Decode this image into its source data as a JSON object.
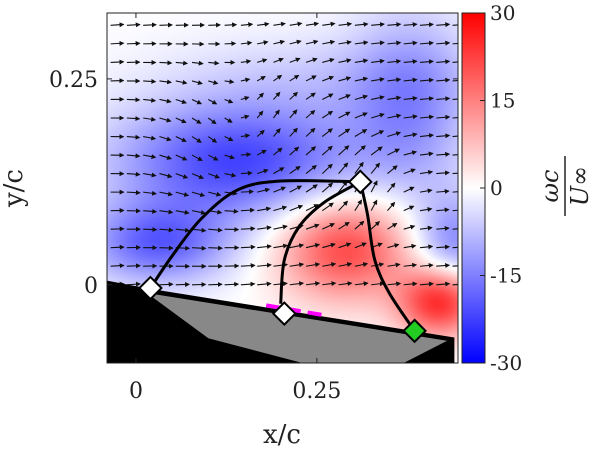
{
  "chart_data": {
    "type": "heatmap",
    "title": "",
    "xlabel": "x/c",
    "ylabel": "y/c",
    "xlim": [
      -0.04,
      0.445
    ],
    "ylim": [
      -0.095,
      0.33
    ],
    "xticks": [
      0,
      0.25
    ],
    "xtick_labels": [
      "0",
      "0.25"
    ],
    "yticks": [
      0,
      0.25
    ],
    "ytick_labels": [
      "0",
      "0.25"
    ],
    "colorbar": {
      "label_numerator": "ωc",
      "label_denominator": "U∞",
      "range": [
        -30,
        30
      ],
      "ticks": [
        30,
        15,
        0,
        -15,
        -30
      ],
      "tick_labels": [
        "30",
        "15",
        "0",
        "-15",
        "-30"
      ],
      "colormap": [
        "#0000ff",
        "#ffffff",
        "#ff0000"
      ]
    },
    "vorticity_regions": [
      {
        "name": "leading-edge vortex",
        "x": 0.14,
        "y": 0.15,
        "sx": 0.12,
        "sy": 0.05,
        "value": -22
      },
      {
        "name": "leading-edge shear layer",
        "x": 0.03,
        "y": 0.05,
        "sx": 0.07,
        "sy": 0.035,
        "value": -18
      },
      {
        "name": "upper wake",
        "x": 0.38,
        "y": 0.22,
        "sx": 0.06,
        "sy": 0.08,
        "value": -12
      },
      {
        "name": "right wake",
        "x": 0.44,
        "y": 0.05,
        "sx": 0.04,
        "sy": 0.04,
        "value": -14
      },
      {
        "name": "upper sheet",
        "x": 0.25,
        "y": 0.25,
        "sx": 0.15,
        "sy": 0.04,
        "value": -5
      },
      {
        "name": "trailing counter-rotating region",
        "x": 0.29,
        "y": 0.045,
        "sx": 0.065,
        "sy": 0.045,
        "value": 22
      },
      {
        "name": "trailing-edge region",
        "x": 0.42,
        "y": -0.02,
        "sx": 0.04,
        "sy": 0.03,
        "value": 26
      }
    ],
    "vector_grid": {
      "x_spacing": 0.0225,
      "y_spacing": 0.0225,
      "x_range": [
        -0.035,
        0.44
      ],
      "y_range": [
        0.0,
        0.32
      ]
    },
    "body": {
      "shape": [
        [
          -0.04,
          0.005
        ],
        [
          0.02,
          -0.005
        ],
        [
          0.44,
          -0.064
        ],
        [
          0.44,
          -0.095
        ],
        [
          -0.04,
          -0.095
        ]
      ],
      "color": "#000000"
    },
    "wing": {
      "shape": [
        [
          0.015,
          -0.01
        ],
        [
          0.43,
          -0.068
        ],
        [
          0.37,
          -0.095
        ],
        [
          0.23,
          -0.095
        ],
        [
          0.1,
          -0.065
        ]
      ],
      "color": "#888888"
    },
    "markers": [
      {
        "name": "leading-edge point",
        "x": 0.02,
        "y": -0.004,
        "color": "#ffffff"
      },
      {
        "name": "mid-chord point",
        "x": 0.205,
        "y": -0.035,
        "color": "#ffffff"
      },
      {
        "name": "upper vertex point",
        "x": 0.31,
        "y": 0.125,
        "color": "#ffffff"
      },
      {
        "name": "trailing point",
        "x": 0.385,
        "y": -0.056,
        "color": "#22cc22"
      }
    ],
    "boundary_curves": [
      {
        "name": "leading curve",
        "points": [
          [
            0.02,
            -0.004
          ],
          [
            0.05,
            0.035
          ],
          [
            0.09,
            0.08
          ],
          [
            0.14,
            0.115
          ],
          [
            0.2,
            0.126
          ],
          [
            0.31,
            0.125
          ]
        ]
      },
      {
        "name": "middle curve",
        "points": [
          [
            0.2,
            -0.023
          ],
          [
            0.205,
            0.03
          ],
          [
            0.225,
            0.07
          ],
          [
            0.26,
            0.1
          ],
          [
            0.31,
            0.125
          ]
        ]
      },
      {
        "name": "trailing curve",
        "points": [
          [
            0.31,
            0.125
          ],
          [
            0.32,
            0.085
          ],
          [
            0.33,
            0.03
          ],
          [
            0.35,
            -0.01
          ],
          [
            0.385,
            -0.056
          ]
        ]
      }
    ],
    "highlight_segment": {
      "color": "#ff00ff",
      "points": [
        [
          0.18,
          -0.025
        ],
        [
          0.26,
          -0.037
        ]
      ]
    }
  },
  "colors": {
    "background": "#ffffff",
    "axis": "#222222",
    "curves": "#000000",
    "vectors": "#111111"
  }
}
